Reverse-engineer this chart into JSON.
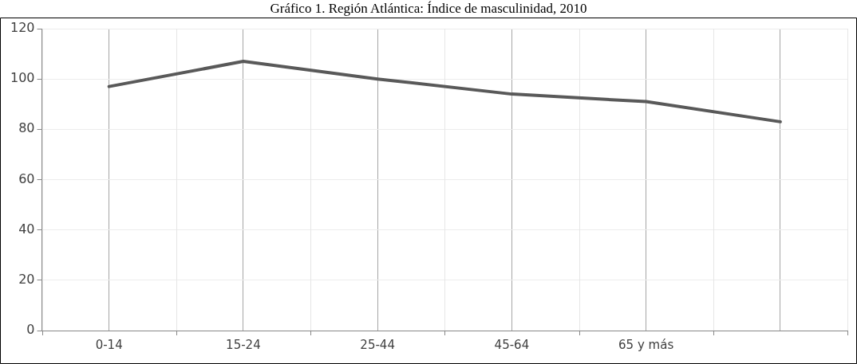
{
  "chart_data": {
    "type": "line",
    "title": "Gráfico 1. Región Atlántica: Índice de masculinidad, 2010",
    "categories": [
      "0-14",
      "15-24",
      "25-44",
      "45-64",
      "65 y más",
      null
    ],
    "series": [
      {
        "color": "#595959",
        "values": [
          97,
          107,
          100,
          94,
          91,
          83
        ]
      }
    ],
    "ylim": [
      0,
      120
    ],
    "yticks": [
      0,
      20,
      40,
      60,
      80,
      100,
      120
    ],
    "grid": true,
    "legend": false,
    "marker": "none",
    "line_style": "solid"
  }
}
